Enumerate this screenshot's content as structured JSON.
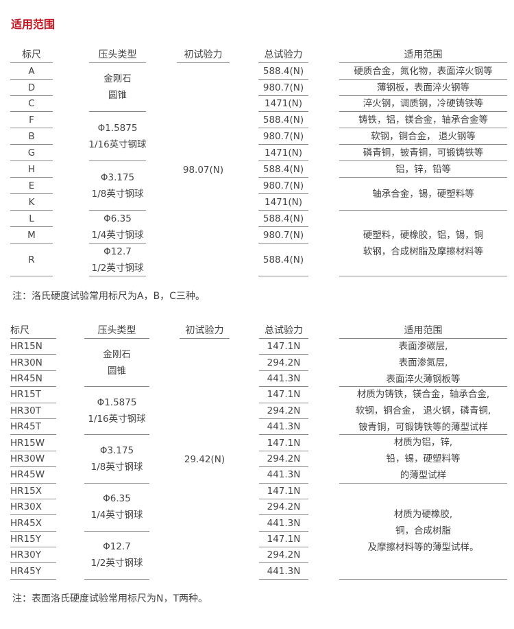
{
  "title": "适用范围",
  "table1": {
    "headers": [
      "标尺",
      "压头类型",
      "初试验力",
      "总试验力",
      "适用范围"
    ],
    "scales": [
      "A",
      "D",
      "C",
      "F",
      "B",
      "G",
      "H",
      "E",
      "K",
      "L",
      "M",
      "R"
    ],
    "indenters": [
      {
        "text": [
          "金刚石",
          "圆锥"
        ],
        "span": 3
      },
      {
        "text": [
          "Φ1.5875",
          "1/16英寸钢球"
        ],
        "span": 3
      },
      {
        "text": [
          "Φ3.175",
          "1/8英寸钢球"
        ],
        "span": 3
      },
      {
        "text": [
          "Φ6.35",
          "1/4英寸钢球"
        ],
        "span": 2
      },
      {
        "text": [
          "Φ12.7",
          "1/2英寸钢球"
        ],
        "span": 1
      }
    ],
    "preload": "98.07(N)",
    "total": [
      "588.4(N)",
      "980.7(N)",
      "1471(N)",
      "588.4(N)",
      "980.7(N)",
      "1471(N)",
      "588.4(N)",
      "980.7(N)",
      "1471(N)",
      "588.4(N)",
      "980.7(N)",
      "588.4(N)"
    ],
    "scope": [
      {
        "text": [
          "硬质合金，氮化物，表面淬火钢等"
        ],
        "span": 1
      },
      {
        "text": [
          "薄钢板，表面淬火钢等"
        ],
        "span": 1
      },
      {
        "text": [
          "淬火钢，调质钢，冷硬铸铁等"
        ],
        "span": 1
      },
      {
        "text": [
          "铸铁，铝，镁合金，轴承合金等"
        ],
        "span": 1
      },
      {
        "text": [
          "软钢，铜合金， 退火钢等"
        ],
        "span": 1
      },
      {
        "text": [
          "磷青铜，铍青铜，可锻铸铁等"
        ],
        "span": 1
      },
      {
        "text": [
          "铝，锌，铅等"
        ],
        "span": 1
      },
      {
        "text": [
          "轴承合金，锡，硬塑料等"
        ],
        "span": 2
      },
      {
        "text": [
          "硬塑料，硬橡胶，铝，锡，铜",
          "软钢，合成树脂及摩擦材料等"
        ],
        "span": 3
      }
    ],
    "note": "注：洛氏硬度试验常用标尺为A，B，C三种。"
  },
  "table2": {
    "headers": [
      "标尺",
      "压头类型",
      "初试验力",
      "总试验力",
      "适用范围"
    ],
    "scales": [
      "HR15N",
      "HR30N",
      "HR45N",
      "HR15T",
      "HR30T",
      "HR45T",
      "HR15W",
      "HR30W",
      "HR45W",
      "HR15X",
      "HR30X",
      "HR45X",
      "HR15Y",
      "HR30Y",
      "HR45Y"
    ],
    "indenters": [
      {
        "text": [
          "金刚石",
          "圆锥"
        ],
        "span": 3
      },
      {
        "text": [
          "Φ1.5875",
          "1/16英寸钢球"
        ],
        "span": 3
      },
      {
        "text": [
          "Φ3.175",
          "1/8英寸钢球"
        ],
        "span": 3
      },
      {
        "text": [
          "Φ6.35",
          "1/4英寸钢球"
        ],
        "span": 3
      },
      {
        "text": [
          "Φ12.7",
          "1/2英寸钢球"
        ],
        "span": 3
      }
    ],
    "preload": "29.42(N)",
    "total": [
      "147.1N",
      "294.2N",
      "441.3N",
      "147.1N",
      "294.2N",
      "441.3N",
      "147.1N",
      "294.2N",
      "441.3N",
      "147.1N",
      "294.2N",
      "441.3N",
      "147.1N",
      "294.2N",
      "441.3N"
    ],
    "scope": [
      {
        "text": [
          "表面渗碳层,",
          "表面渗氮层,",
          "表面淬火薄钢板等"
        ],
        "span": 3
      },
      {
        "text": [
          "材质为铸铁，镁合金，轴承合金,",
          "软钢，铜合金， 退火钢，磷青铜,",
          "铍青铜，可锻铸铁等的薄型试样"
        ],
        "span": 3
      },
      {
        "text": [
          "材质为铝，锌,",
          "铅，锡，硬塑料等",
          "的薄型试样"
        ],
        "span": 3
      },
      {
        "text": [
          "材质为硬橡胶,",
          "铜，合成树脂",
          "及摩擦材料等的薄型试样。"
        ],
        "span": 6
      }
    ],
    "note": "注：表面洛氏硬度试验常用标尺为N，T两种。"
  },
  "colors": {
    "title": "#c0141e",
    "text": "#444444",
    "rule": "#888888"
  }
}
